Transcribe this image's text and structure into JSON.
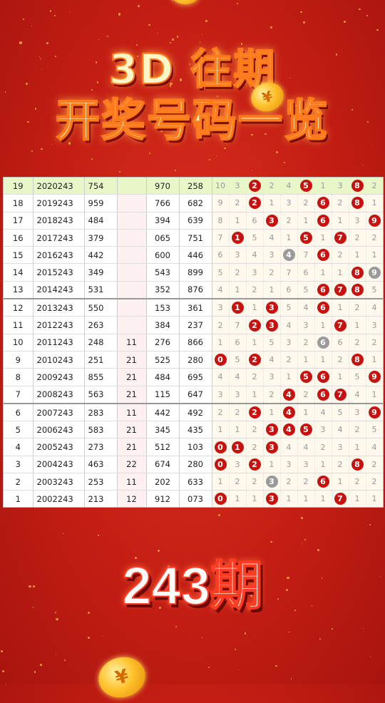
{
  "title_line1": "3D 往期",
  "title_line2": "开奖号码一览",
  "coin_symbol": "¥",
  "period_label": "243期",
  "rows": [
    {
      "idx": "19",
      "issue": "2020243",
      "a": "754",
      "b": "",
      "c": "970",
      "d": "258",
      "grid": [
        "10",
        "3",
        "2",
        "2",
        "4",
        "5",
        "1",
        "3",
        "8",
        "2"
      ],
      "balls": [
        2,
        5,
        8
      ],
      "gray": [],
      "top": true
    },
    {
      "idx": "18",
      "issue": "2019243",
      "a": "959",
      "b": "",
      "c": "766",
      "d": "682",
      "grid": [
        "9",
        "2",
        "2",
        "1",
        "3",
        "2",
        "6",
        "2",
        "8",
        "1"
      ],
      "balls": [
        2,
        6,
        8
      ],
      "gray": []
    },
    {
      "idx": "17",
      "issue": "2018243",
      "a": "484",
      "b": "",
      "c": "394",
      "d": "639",
      "grid": [
        "8",
        "1",
        "6",
        "3",
        "2",
        "1",
        "6",
        "1",
        "3",
        "9"
      ],
      "balls": [
        3,
        6,
        9
      ],
      "gray": []
    },
    {
      "idx": "16",
      "issue": "2017243",
      "a": "379",
      "b": "",
      "c": "065",
      "d": "751",
      "grid": [
        "7",
        "1",
        "5",
        "4",
        "1",
        "5",
        "1",
        "7",
        "2",
        "2"
      ],
      "balls": [
        1,
        5,
        7
      ],
      "gray": []
    },
    {
      "idx": "15",
      "issue": "2016243",
      "a": "442",
      "b": "",
      "c": "600",
      "d": "446",
      "grid": [
        "6",
        "3",
        "4",
        "3",
        "4",
        "7",
        "6",
        "2",
        "1",
        "1"
      ],
      "balls": [
        6
      ],
      "gray": [
        4
      ]
    },
    {
      "idx": "14",
      "issue": "2015243",
      "a": "349",
      "b": "",
      "c": "543",
      "d": "899",
      "grid": [
        "5",
        "2",
        "3",
        "2",
        "7",
        "6",
        "1",
        "1",
        "8",
        "9"
      ],
      "balls": [
        8
      ],
      "gray": [
        9
      ]
    },
    {
      "idx": "13",
      "issue": "2014243",
      "a": "531",
      "b": "",
      "c": "352",
      "d": "876",
      "grid": [
        "4",
        "1",
        "2",
        "1",
        "6",
        "5",
        "6",
        "7",
        "8",
        "5"
      ],
      "balls": [
        6,
        7,
        8
      ],
      "gray": []
    },
    {
      "idx": "12",
      "issue": "2013243",
      "a": "550",
      "b": "",
      "c": "153",
      "d": "361",
      "grid": [
        "3",
        "1",
        "1",
        "3",
        "5",
        "4",
        "6",
        "1",
        "2",
        "4"
      ],
      "balls": [
        1,
        3,
        6
      ],
      "gray": [],
      "sep": true
    },
    {
      "idx": "11",
      "issue": "2012243",
      "a": "263",
      "b": "",
      "c": "384",
      "d": "237",
      "grid": [
        "2",
        "7",
        "2",
        "3",
        "4",
        "3",
        "1",
        "7",
        "1",
        "3"
      ],
      "balls": [
        2,
        3,
        7
      ],
      "gray": []
    },
    {
      "idx": "10",
      "issue": "2011243",
      "a": "248",
      "b": "11",
      "c": "276",
      "d": "866",
      "grid": [
        "1",
        "6",
        "1",
        "5",
        "3",
        "2",
        "6",
        "6",
        "2",
        "2"
      ],
      "balls": [],
      "gray": [
        6
      ]
    },
    {
      "idx": "9",
      "issue": "2010243",
      "a": "251",
      "b": "21",
      "c": "525",
      "d": "280",
      "grid": [
        "0",
        "5",
        "2",
        "4",
        "2",
        "1",
        "1",
        "2",
        "8",
        "1"
      ],
      "balls": [
        0,
        2,
        8
      ],
      "gray": []
    },
    {
      "idx": "8",
      "issue": "2009243",
      "a": "855",
      "b": "21",
      "c": "484",
      "d": "695",
      "grid": [
        "4",
        "4",
        "2",
        "3",
        "1",
        "5",
        "6",
        "1",
        "5",
        "9"
      ],
      "balls": [
        5,
        6,
        9
      ],
      "gray": []
    },
    {
      "idx": "7",
      "issue": "2008243",
      "a": "563",
      "b": "21",
      "c": "115",
      "d": "647",
      "grid": [
        "3",
        "3",
        "1",
        "2",
        "4",
        "2",
        "6",
        "7",
        "4",
        "1"
      ],
      "balls": [
        4,
        6,
        7
      ],
      "gray": []
    },
    {
      "idx": "6",
      "issue": "2007243",
      "a": "283",
      "b": "11",
      "c": "442",
      "d": "492",
      "grid": [
        "2",
        "2",
        "2",
        "1",
        "4",
        "1",
        "4",
        "5",
        "3",
        "9"
      ],
      "balls": [
        2,
        4,
        9
      ],
      "gray": [],
      "sep": true
    },
    {
      "idx": "5",
      "issue": "2006243",
      "a": "583",
      "b": "21",
      "c": "345",
      "d": "435",
      "grid": [
        "1",
        "1",
        "2",
        "3",
        "4",
        "5",
        "3",
        "4",
        "2",
        "5"
      ],
      "balls": [
        3,
        4,
        5
      ],
      "gray": []
    },
    {
      "idx": "4",
      "issue": "2005243",
      "a": "273",
      "b": "21",
      "c": "512",
      "d": "103",
      "grid": [
        "0",
        "1",
        "2",
        "3",
        "4",
        "4",
        "2",
        "3",
        "1",
        "4"
      ],
      "balls": [
        0,
        1,
        3
      ],
      "gray": []
    },
    {
      "idx": "3",
      "issue": "2004243",
      "a": "463",
      "b": "22",
      "c": "674",
      "d": "280",
      "grid": [
        "0",
        "3",
        "2",
        "1",
        "3",
        "3",
        "1",
        "2",
        "8",
        "2"
      ],
      "balls": [
        0,
        2,
        8
      ],
      "gray": []
    },
    {
      "idx": "2",
      "issue": "2003243",
      "a": "253",
      "b": "11",
      "c": "202",
      "d": "633",
      "grid": [
        "1",
        "2",
        "2",
        "3",
        "2",
        "2",
        "6",
        "1",
        "2",
        "2"
      ],
      "balls": [
        6
      ],
      "gray": [
        3
      ]
    },
    {
      "idx": "1",
      "issue": "2002243",
      "a": "213",
      "b": "12",
      "c": "912",
      "d": "073",
      "grid": [
        "0",
        "1",
        "1",
        "3",
        "1",
        "1",
        "1",
        "7",
        "1",
        "1"
      ],
      "balls": [
        0,
        3,
        7
      ],
      "gray": []
    }
  ]
}
